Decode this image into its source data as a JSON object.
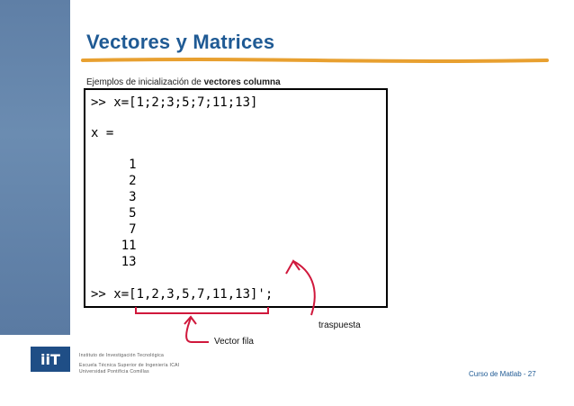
{
  "slide": {
    "title": "Vectores y Matrices",
    "subtitle_prefix": "Ejemplos de inicialización de ",
    "subtitle_bold": "vectores columna",
    "code_lines": [
      ">> x=[1;2;3;5;7;11;13]",
      "x =",
      "     1",
      "     2",
      "     3",
      "     5",
      "     7",
      "    11",
      "    13",
      ">> x=[1,2,3,5,7,11,13]';"
    ],
    "annotation_transpose": "traspuesta",
    "annotation_row": "Vector fila",
    "logo_text": "iiT",
    "institution_lines": [
      "Instituto de Investigación Tecnológica",
      "Escuela Técnica Superior de Ingeniería ICAI",
      "Universidad Pontificia Comillas"
    ],
    "footer": "Curso de Matlab - 27"
  },
  "colors": {
    "title": "#1f5a94",
    "title_underline": "#e8a030",
    "sidebar": "#6283ac",
    "annotation_arrow": "#d0183c"
  }
}
